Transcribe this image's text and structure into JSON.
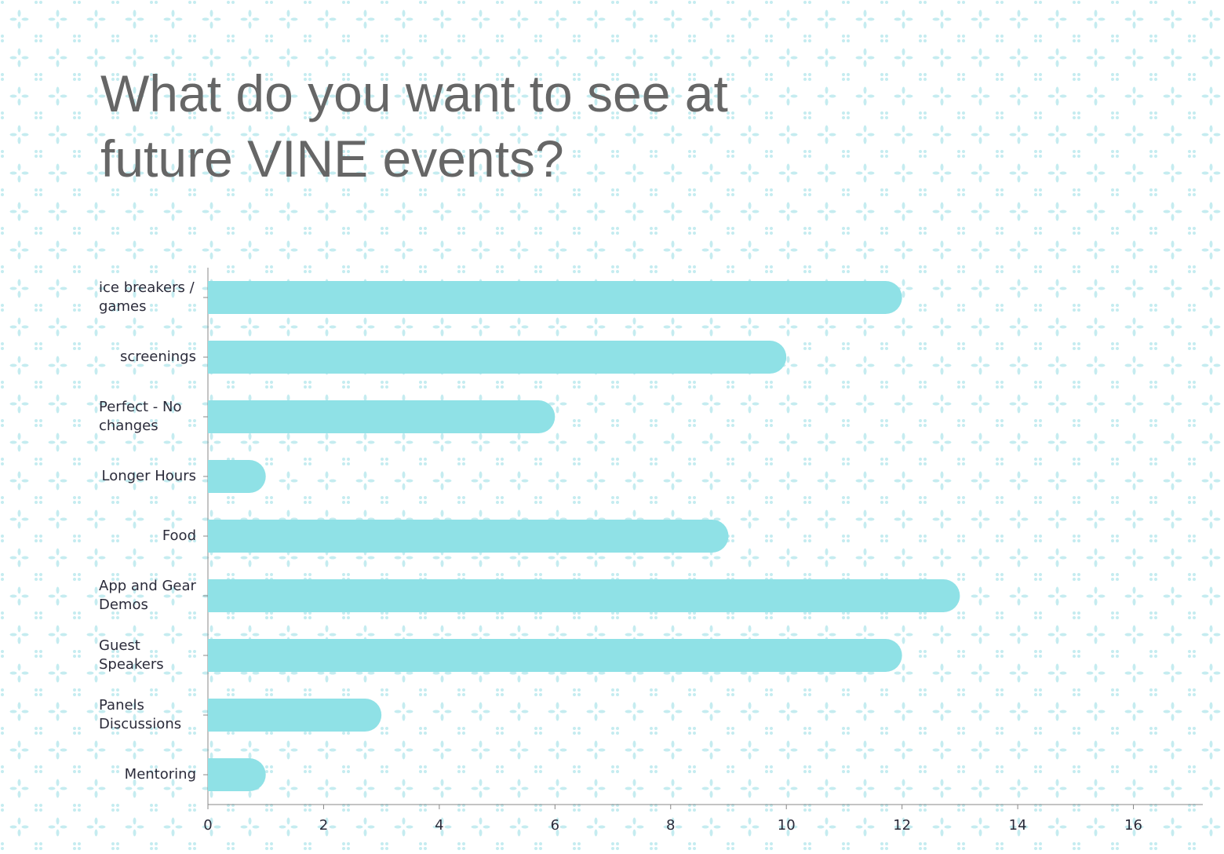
{
  "chart_data": {
    "type": "bar",
    "orientation": "horizontal",
    "title": "What do you want to see at future VINE events?",
    "categories": [
      "ice breakers / games",
      "screenings",
      "Perfect - No changes",
      "Longer Hours",
      "Food",
      "App and Gear Demos",
      "Guest Speakers",
      "Panels Discussions",
      "Mentoring"
    ],
    "values": [
      12,
      10,
      6,
      1,
      9,
      13,
      12,
      3,
      1
    ],
    "color": "#8fe1e6",
    "xlim": [
      0,
      17.2
    ],
    "xticks": [
      0,
      2,
      4,
      6,
      8,
      10,
      12,
      14,
      16
    ]
  }
}
